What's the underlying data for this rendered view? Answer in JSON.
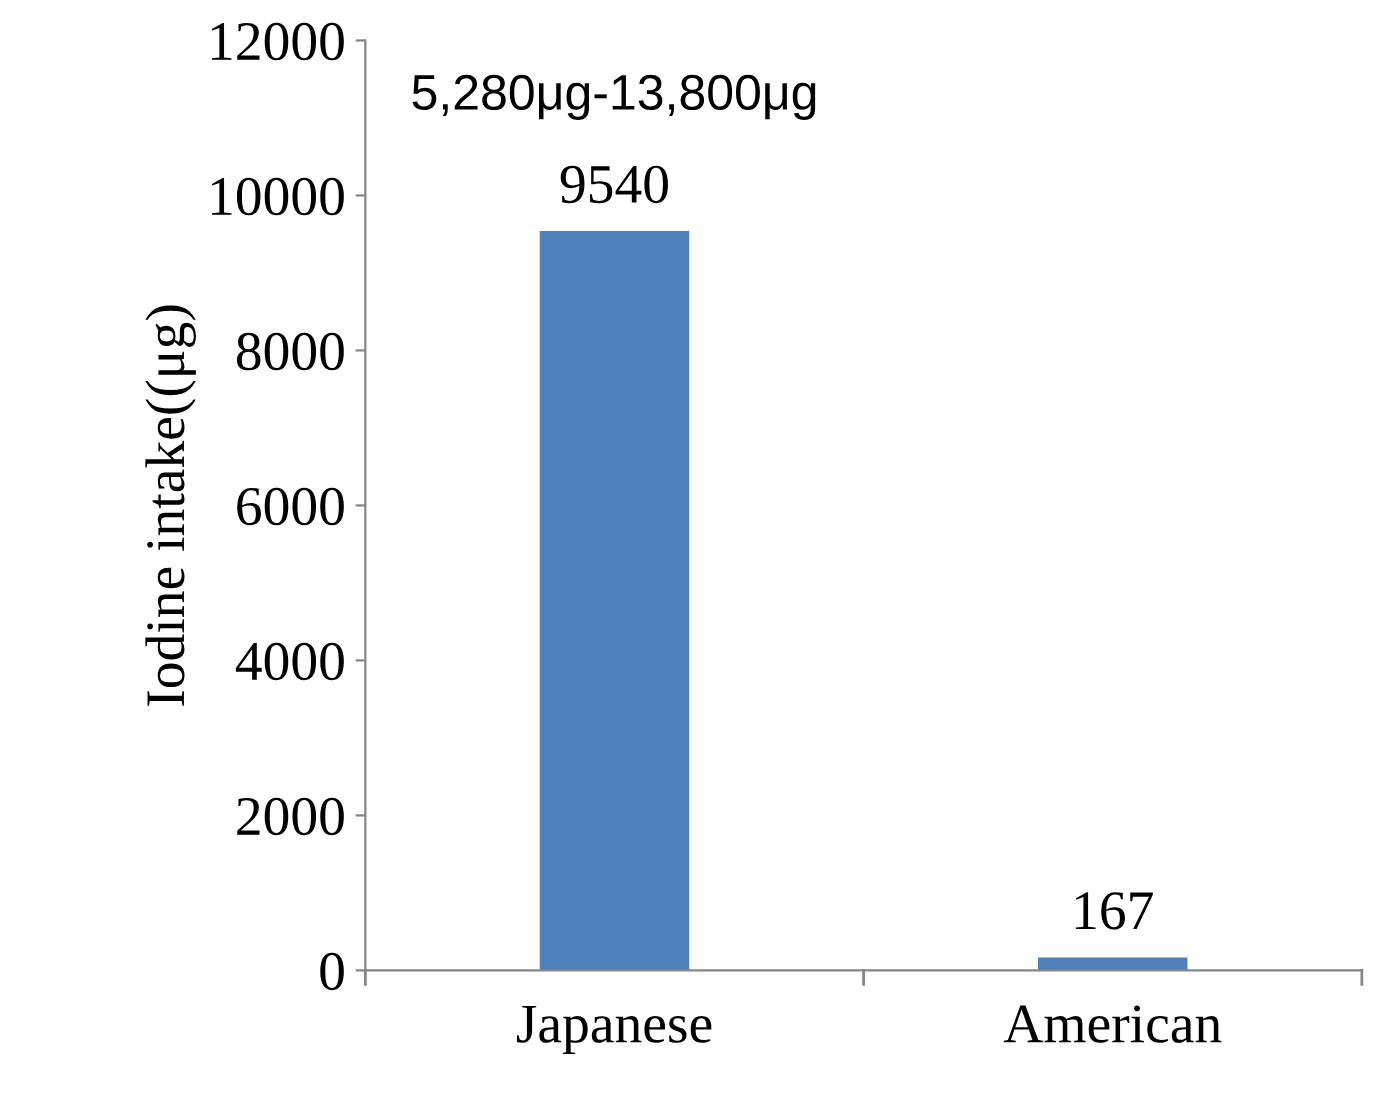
{
  "chart_data": {
    "type": "bar",
    "ylabel": "Iodine intake((μg)",
    "categories": [
      "Japanese",
      "American"
    ],
    "values": [
      9540,
      167
    ],
    "color": "#4f81bd",
    "ylim": [
      0,
      12000
    ],
    "yticks": [
      0,
      2000,
      4000,
      6000,
      8000,
      10000,
      12000
    ],
    "data_labels": true,
    "grid": false,
    "legend": false,
    "annotations": [
      "5,280μg-13,800μg"
    ]
  }
}
